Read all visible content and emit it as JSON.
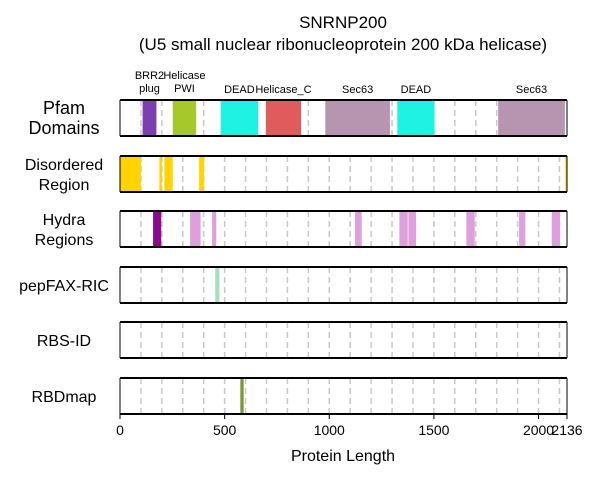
{
  "chart_data": {
    "type": "domain-track",
    "title": [
      "SNRNP200",
      "(U5 small nuclear ribonucleoprotein 200 kDa helicase)"
    ],
    "xlabel": "Protein Length",
    "protein_length": 2136,
    "xlim": [
      0,
      2136
    ],
    "xticks": [
      0,
      500,
      1000,
      1500,
      2000,
      2136
    ],
    "grid": "vertical dashed, every 100 residues",
    "tracks": [
      {
        "name": "Pfam\nDomains",
        "label_lines": [
          "Pfam",
          "Domains"
        ],
        "features": [
          {
            "label": "BRR2 plug",
            "label_lines": [
              "BRR2",
              "plug"
            ],
            "start": 108,
            "end": 174,
            "color": "#7b3fb0"
          },
          {
            "label": "Helicase PWI",
            "label_lines": [
              "Helicase",
              "PWI"
            ],
            "start": 252,
            "end": 364,
            "color": "#a6c82a"
          },
          {
            "label": "DEAD",
            "label_lines": [
              "DEAD"
            ],
            "start": 481,
            "end": 660,
            "color": "#1ff2e2"
          },
          {
            "label": "Helicase_C",
            "label_lines": [
              "Helicase_C"
            ],
            "start": 697,
            "end": 865,
            "color": "#e05c5c"
          },
          {
            "label": "Sec63",
            "label_lines": [
              "Sec63"
            ],
            "start": 981,
            "end": 1290,
            "color": "#b795b0"
          },
          {
            "label": "DEAD",
            "label_lines": [
              "DEAD"
            ],
            "start": 1325,
            "end": 1503,
            "color": "#1ff2e2"
          },
          {
            "label": "Sec63",
            "label_lines": [
              "Sec63"
            ],
            "start": 1807,
            "end": 2126,
            "color": "#b795b0"
          }
        ]
      },
      {
        "name": "Disordered\nRegion",
        "label_lines": [
          "Disordered",
          "Region"
        ],
        "features": [
          {
            "start": 1,
            "end": 100,
            "color": "#ffd400"
          },
          {
            "start": 188,
            "end": 200,
            "color": "#ffd400"
          },
          {
            "start": 212,
            "end": 252,
            "color": "#ffd400"
          },
          {
            "start": 378,
            "end": 402,
            "color": "#ffd400"
          },
          {
            "start": 2128,
            "end": 2136,
            "color": "#ffd400"
          }
        ]
      },
      {
        "name": "Hydra\nRegions",
        "label_lines": [
          "Hydra",
          "Regions"
        ],
        "features": [
          {
            "start": 158,
            "end": 197,
            "color": "#8b0a8b"
          },
          {
            "start": 335,
            "end": 385,
            "color": "#dda0dd"
          },
          {
            "start": 440,
            "end": 460,
            "color": "#dda0dd"
          },
          {
            "start": 1123,
            "end": 1155,
            "color": "#dda0dd"
          },
          {
            "start": 1335,
            "end": 1375,
            "color": "#dda0dd"
          },
          {
            "start": 1378,
            "end": 1415,
            "color": "#dda0dd"
          },
          {
            "start": 1655,
            "end": 1695,
            "color": "#dda0dd"
          },
          {
            "start": 1907,
            "end": 1937,
            "color": "#dda0dd"
          },
          {
            "start": 2063,
            "end": 2103,
            "color": "#dda0dd"
          }
        ]
      },
      {
        "name": "pepFAX-RIC",
        "label_lines": [
          "pepFAX-RIC"
        ],
        "features": [
          {
            "start": 455,
            "end": 475,
            "color": "#a6dfc0"
          }
        ]
      },
      {
        "name": "RBS-ID",
        "label_lines": [
          "RBS-ID"
        ],
        "features": []
      },
      {
        "name": "RBDmap",
        "label_lines": [
          "RBDmap"
        ],
        "features": [
          {
            "start": 575,
            "end": 591,
            "color": "#7a9a3a"
          }
        ]
      }
    ]
  }
}
